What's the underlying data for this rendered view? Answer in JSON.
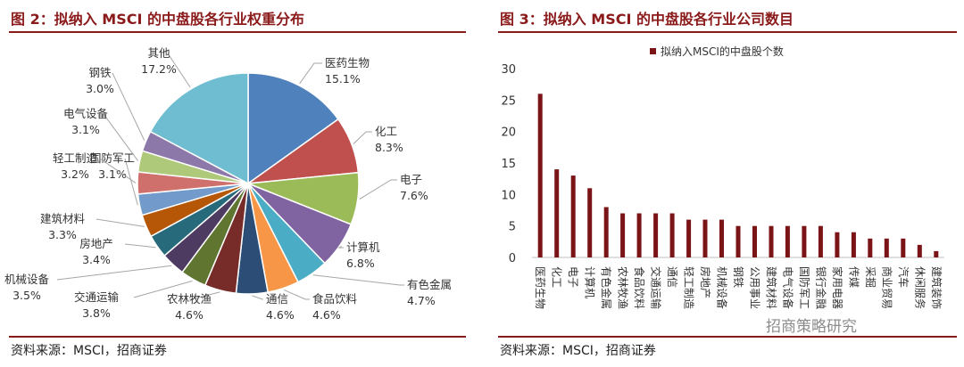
{
  "left": {
    "title": "图 2：拟纳入 MSCI 的中盘股各行业权重分布",
    "source": "资料来源：MSCI，招商证券"
  },
  "right": {
    "title": "图 3：拟纳入 MSCI 的中盘股各行业公司数目",
    "source": "资料来源：MSCI，招商证券",
    "watermark": "招商策略研究"
  },
  "colors": {
    "accent": "#8b1a1a",
    "bar": "#7b1416"
  },
  "chart_data": [
    {
      "type": "pie",
      "title": "",
      "slices": [
        {
          "label": "医药生物",
          "value": 15.1,
          "value_label": "15.1%",
          "color": "#4f81bd"
        },
        {
          "label": "化工",
          "value": 8.3,
          "value_label": "8.3%",
          "color": "#c0504d"
        },
        {
          "label": "电子",
          "value": 7.6,
          "value_label": "7.6%",
          "color": "#9bbb59"
        },
        {
          "label": "计算机",
          "value": 6.8,
          "value_label": "6.8%",
          "color": "#8064a2"
        },
        {
          "label": "有色金属",
          "value": 4.7,
          "value_label": "4.7%",
          "color": "#4bacc6"
        },
        {
          "label": "食品饮料",
          "value": 4.6,
          "value_label": "4.6%",
          "color": "#f79646"
        },
        {
          "label": "通信",
          "value": 4.6,
          "value_label": "4.6%",
          "color": "#2c4d75"
        },
        {
          "label": "农林牧渔",
          "value": 4.6,
          "value_label": "4.6%",
          "color": "#772c2a"
        },
        {
          "label": "交通运输",
          "value": 3.8,
          "value_label": "3.8%",
          "color": "#5f7530"
        },
        {
          "label": "机械设备",
          "value": 3.5,
          "value_label": "3.5%",
          "color": "#4d3b62"
        },
        {
          "label": "房地产",
          "value": 3.4,
          "value_label": "3.4%",
          "color": "#276a7c"
        },
        {
          "label": "建筑材料",
          "value": 3.3,
          "value_label": "3.3%",
          "color": "#b65708"
        },
        {
          "label": "国防军工",
          "value": 3.1,
          "value_label": "3.1%",
          "color": "#729aca"
        },
        {
          "label": "轻工制造",
          "value": 3.2,
          "value_label": "3.2%",
          "color": "#d0706d"
        },
        {
          "label": "电气设备",
          "value": 3.1,
          "value_label": "3.1%",
          "color": "#afc97a"
        },
        {
          "label": "钢铁",
          "value": 3.0,
          "value_label": "3.0%",
          "color": "#8c78a9"
        },
        {
          "label": "其他",
          "value": 17.2,
          "value_label": "17.2%",
          "color": "#6fbdd1"
        }
      ]
    },
    {
      "type": "bar",
      "legend": "拟纳入MSCI的中盘股个数",
      "legend_position": "top-left",
      "ylim": [
        0,
        30
      ],
      "yticks": [
        0,
        5,
        10,
        15,
        20,
        25,
        30
      ],
      "grid": false,
      "categories": [
        "医药生物",
        "化工",
        "电子",
        "计算机",
        "有色金属",
        "农林牧渔",
        "食品饮料",
        "交通运输",
        "通信",
        "轻工制造",
        "房地产",
        "机械设备",
        "钢铁",
        "公用事业",
        "建筑材料",
        "电气设备",
        "国防军工",
        "银行金融",
        "家用电器",
        "传媒",
        "采掘",
        "商业贸易",
        "汽车",
        "休闲服务",
        "建筑装饰"
      ],
      "values": [
        26,
        14,
        13,
        11,
        8,
        7,
        7,
        7,
        7,
        6,
        6,
        6,
        5,
        5,
        5,
        5,
        5,
        5,
        4,
        4,
        3,
        3,
        3,
        2,
        1
      ]
    }
  ]
}
